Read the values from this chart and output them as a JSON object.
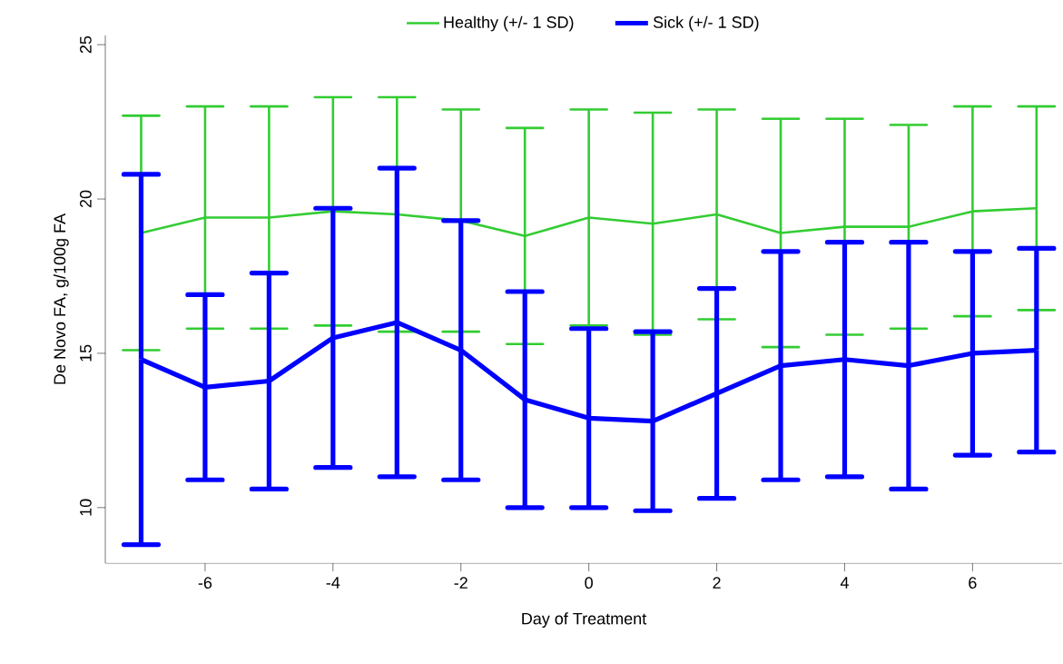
{
  "chart_data": {
    "type": "line",
    "xlabel": "Day of Treatment",
    "ylabel": "De Novo FA, g/100g FA",
    "x": [
      -7,
      -6,
      -5,
      -4,
      -3,
      -2,
      -1,
      0,
      1,
      2,
      3,
      4,
      5,
      6,
      7
    ],
    "series": [
      {
        "name": "Healthy (+/- 1 SD)",
        "color": "#33cc33",
        "values": [
          18.9,
          19.4,
          19.4,
          19.6,
          19.5,
          19.3,
          18.8,
          19.4,
          19.2,
          19.5,
          18.9,
          19.1,
          19.1,
          19.6,
          19.7
        ],
        "errors": [
          3.8,
          3.6,
          3.6,
          3.7,
          3.8,
          3.6,
          3.5,
          3.5,
          3.6,
          3.4,
          3.7,
          3.5,
          3.3,
          3.4,
          3.3
        ]
      },
      {
        "name": "Sick (+/- 1 SD)",
        "color": "#0000ff",
        "values": [
          14.8,
          13.9,
          14.1,
          15.5,
          16.0,
          15.1,
          13.5,
          12.9,
          12.8,
          13.7,
          14.6,
          14.8,
          14.6,
          15.0,
          15.1
        ],
        "errors": [
          6.0,
          3.0,
          3.5,
          4.2,
          5.0,
          4.2,
          3.5,
          2.9,
          2.9,
          3.4,
          3.7,
          3.8,
          4.0,
          3.3,
          3.3
        ]
      }
    ],
    "xlim": [
      -7.56,
      7.4
    ],
    "ylim": [
      8.2,
      25.3
    ],
    "xticks": [
      -6,
      -4,
      -2,
      0,
      2,
      4,
      6
    ],
    "yticks": [
      10,
      15,
      20,
      25
    ],
    "grid": false,
    "legend": "top",
    "marker": "none",
    "line_style": "solid"
  }
}
